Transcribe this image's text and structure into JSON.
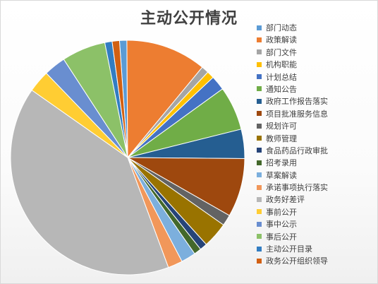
{
  "chart_data": {
    "type": "pie",
    "title": "主动公开情况",
    "legend_position": "right",
    "categories": [
      "部门动态",
      "政策解读",
      "部门文件",
      "机构职能",
      "计划总结",
      "通知公告",
      "政府工作报告落实",
      "项目批准服务信息",
      "规划许可",
      "教师管理",
      "食品药品行政审批",
      "招考录用",
      "草案解读",
      "承诺事项执行落实",
      "政务好差评",
      "事前公开",
      "事中公示",
      "事后公开",
      "主动公开目录",
      "政务公开组织领导"
    ],
    "values": [
      1.0,
      11.0,
      1.0,
      1.0,
      2.0,
      6.0,
      4.0,
      8.0,
      1.5,
      3.5,
      1.0,
      1.0,
      2.0,
      2.0,
      40.0,
      3.0,
      3.0,
      6.0,
      1.0,
      1.0
    ],
    "colors": [
      "#5b9bd5",
      "#ed7d31",
      "#a5a5a5",
      "#ffc000",
      "#4472c4",
      "#70ad47",
      "#255e91",
      "#9e480e",
      "#636363",
      "#997300",
      "#264478",
      "#43682b",
      "#7cafdd",
      "#f1975a",
      "#b7b7b7",
      "#ffcd33",
      "#698ed0",
      "#8cc168",
      "#327dc2",
      "#d26012"
    ]
  }
}
